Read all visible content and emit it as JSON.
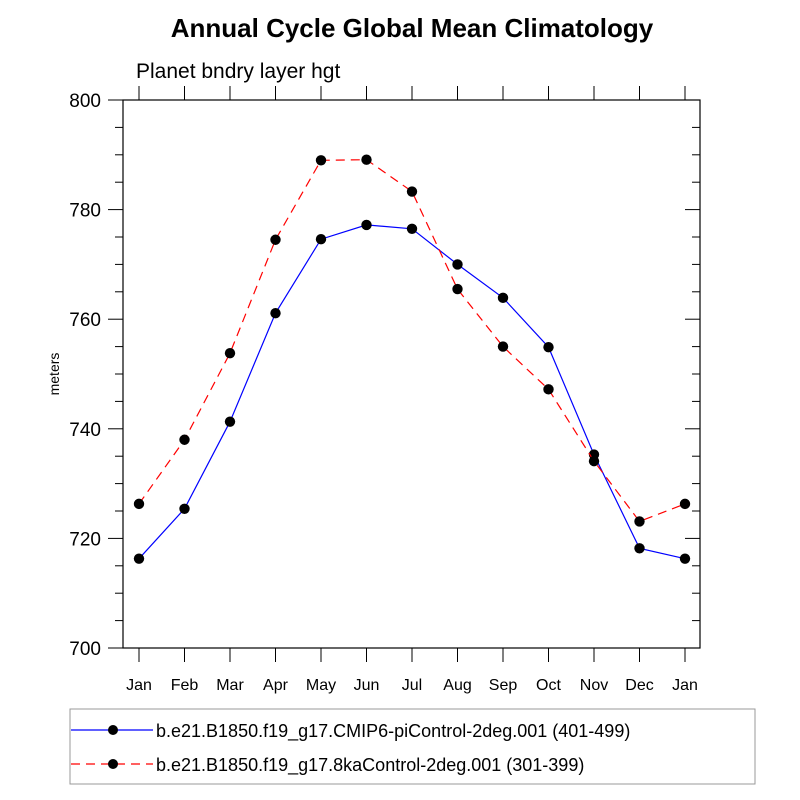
{
  "chart_data": {
    "type": "line",
    "title": "Annual Cycle Global Mean Climatology",
    "subtitle": "Planet bndry layer hgt",
    "xlabel": "",
    "ylabel": "meters",
    "categories": [
      "Jan",
      "Feb",
      "Mar",
      "Apr",
      "May",
      "Jun",
      "Jul",
      "Aug",
      "Sep",
      "Oct",
      "Nov",
      "Dec",
      "Jan"
    ],
    "ylim": [
      700,
      800
    ],
    "yticks": [
      700,
      720,
      740,
      760,
      780,
      800
    ],
    "y_minor_step": 5,
    "grid": false,
    "legend_position": "bottom",
    "series": [
      {
        "name": "b.e21.B1850.f19_g17.CMIP6-piControl-2deg.001 (401-499)",
        "color": "#0000ff",
        "style": "solid",
        "marker": "filled-circle",
        "values": [
          716.3,
          725.4,
          741.3,
          761.1,
          774.6,
          777.2,
          776.5,
          770.0,
          763.9,
          754.9,
          735.3,
          718.2,
          716.3
        ]
      },
      {
        "name": "b.e21.B1850.f19_g17.8kaControl-2deg.001 (301-399)",
        "color": "#ff0000",
        "style": "dashed",
        "marker": "filled-circle",
        "values": [
          726.3,
          738.0,
          753.8,
          774.5,
          789.0,
          789.1,
          783.3,
          765.5,
          755.0,
          747.2,
          734.1,
          723.1,
          726.3
        ]
      }
    ]
  }
}
